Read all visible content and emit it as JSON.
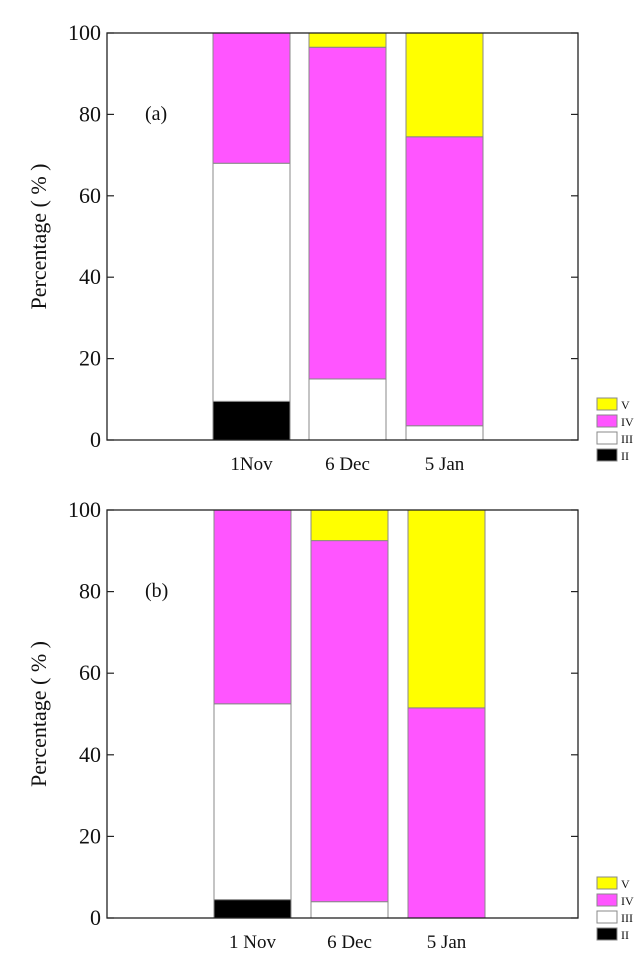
{
  "chart_data": [
    {
      "type": "bar",
      "stacked": true,
      "panel_label": "(a)",
      "ylabel": "Percentage ( % )",
      "ylim": [
        0,
        100
      ],
      "yticks": [
        "0",
        "20",
        "40",
        "60",
        "80",
        "100"
      ],
      "categories": [
        "1Nov",
        "6 Dec",
        "5 Jan"
      ],
      "series": [
        {
          "name": "II",
          "color": "#000000",
          "values": [
            9.5,
            0,
            0
          ]
        },
        {
          "name": "III",
          "color": "#ffffff",
          "values": [
            58.5,
            15,
            3.5
          ]
        },
        {
          "name": "IV",
          "color": "#ff55ff",
          "values": [
            32,
            81.5,
            71
          ]
        },
        {
          "name": "V",
          "color": "#ffff00",
          "values": [
            0,
            3.5,
            25.5
          ]
        }
      ],
      "legend": [
        "V",
        "IV",
        "III",
        "II"
      ]
    },
    {
      "type": "bar",
      "stacked": true,
      "panel_label": "(b)",
      "ylabel": "Percentage ( % )",
      "ylim": [
        0,
        100
      ],
      "yticks": [
        "0",
        "20",
        "40",
        "60",
        "80",
        "100"
      ],
      "categories": [
        "1 Nov",
        "6 Dec",
        "5 Jan"
      ],
      "series": [
        {
          "name": "II",
          "color": "#000000",
          "values": [
            4.5,
            0,
            0
          ]
        },
        {
          "name": "III",
          "color": "#ffffff",
          "values": [
            48,
            4,
            0
          ]
        },
        {
          "name": "IV",
          "color": "#ff55ff",
          "values": [
            47.5,
            88.5,
            51.5
          ]
        },
        {
          "name": "V",
          "color": "#ffff00",
          "values": [
            0,
            7.5,
            48.5
          ]
        }
      ],
      "legend": [
        "V",
        "IV",
        "III",
        "II"
      ]
    }
  ]
}
